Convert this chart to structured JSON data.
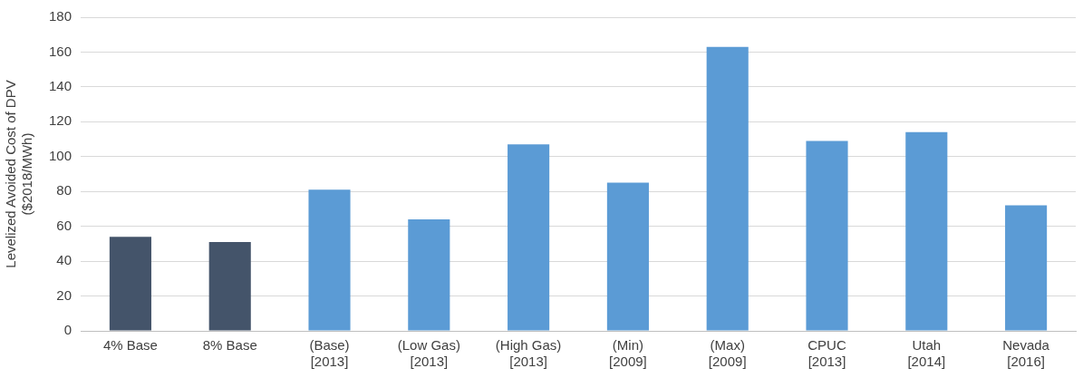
{
  "chart_data": {
    "type": "bar",
    "ylabel": "Levelized Avoided Cost of DPV\n($2018/MWh)",
    "categories": [
      "4% Base",
      "8% Base",
      "(Base)\n[2013]",
      "(Low Gas)\n[2013]",
      "(High Gas)\n[2013]",
      "(Min)\n[2009]",
      "(Max)\n[2009]",
      "CPUC\n[2013]",
      "Utah\n[2014]",
      "Nevada\n[2016]"
    ],
    "values": [
      54,
      51,
      81,
      64,
      107,
      85,
      163,
      109,
      114,
      72
    ],
    "colors": [
      "#44546a",
      "#44546a",
      "#5b9bd5",
      "#5b9bd5",
      "#5b9bd5",
      "#5b9bd5",
      "#5b9bd5",
      "#5b9bd5",
      "#5b9bd5",
      "#5b9bd5"
    ],
    "ylim": [
      0,
      180
    ],
    "yticks": [
      0,
      20,
      40,
      60,
      80,
      100,
      120,
      140,
      160,
      180
    ],
    "grid": "y",
    "legend": false
  }
}
